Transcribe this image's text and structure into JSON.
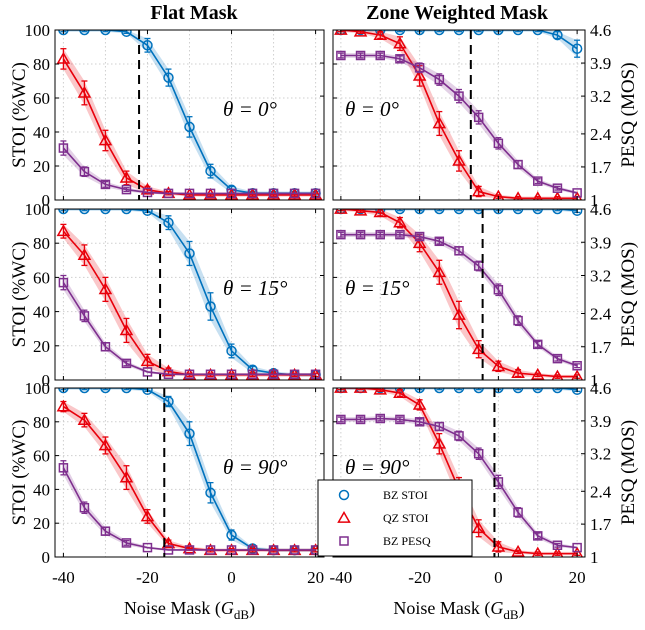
{
  "colors": {
    "stoi_bz": "#0072BD",
    "stoi_qz": "#E8000B",
    "pesq_bz": "#7E2F8E"
  },
  "titles": {
    "left": "Flat Mask",
    "right": "Zone Weighted Mask"
  },
  "axes": {
    "left_ylabel": "STOI (%WC)",
    "right_ylabel": "PESQ (MOS)",
    "xlabel_prefix": "Noise Mask (",
    "xlabel_var": "G",
    "xlabel_sub": "dB",
    "xlabel_suffix": ")",
    "x_ticks": [
      "-40",
      "-20",
      "0",
      "20"
    ],
    "x_tick_values": [
      -40,
      -20,
      0,
      20
    ],
    "left_ticks": [
      "0",
      "20",
      "40",
      "60",
      "80",
      "100"
    ],
    "left_tick_values": [
      0,
      20,
      40,
      60,
      80,
      100
    ],
    "right_ticks": [
      "1",
      "1.7",
      "2.4",
      "3.2",
      "3.9",
      "4.6"
    ],
    "right_tick_values": [
      1,
      1.7,
      2.4,
      3.2,
      3.9,
      4.6
    ]
  },
  "legend": [
    {
      "label": "BZ STOI",
      "marker": "circle-icon",
      "color": "#0072BD"
    },
    {
      "label": "QZ STOI",
      "marker": "triangle-icon",
      "color": "#E8000B"
    },
    {
      "label": "BZ PESQ",
      "marker": "square-icon",
      "color": "#7E2F8E"
    }
  ],
  "chart_data": {
    "type": "line",
    "x": [
      -40,
      -35,
      -30,
      -25,
      -20,
      -15,
      -10,
      -5,
      0,
      5,
      10,
      15,
      20
    ],
    "xlim": [
      -42,
      22
    ],
    "ylim_stoi": [
      0,
      100
    ],
    "ylim_pesq": [
      1,
      4.6
    ],
    "grid": true,
    "legend_position": "bottom-right of the lower-left panel",
    "panels": [
      {
        "row": 0,
        "col": 0,
        "angle_label": "θ = 0°",
        "threshold_x": -22,
        "series": [
          {
            "name": "BZ STOI",
            "values": [
              100,
              100,
              100,
              99,
              91,
              72,
              43,
              17,
              6,
              4,
              4,
              4,
              4
            ],
            "err": [
              1,
              1,
              1,
              1,
              4,
              5,
              6,
              4,
              2,
              1,
              1,
              1,
              1
            ]
          },
          {
            "name": "QZ STOI",
            "values": [
              83,
              63,
              35,
              13,
              6,
              4,
              3,
              3,
              3,
              3,
              3,
              3,
              3
            ],
            "err": [
              6,
              7,
              6,
              4,
              2,
              1,
              1,
              1,
              1,
              1,
              1,
              1,
              1
            ]
          },
          {
            "name": "BZ PESQ",
            "values": [
              2.1,
              1.6,
              1.33,
              1.22,
              1.16,
              1.14,
              1.14,
              1.14,
              1.14,
              1.14,
              1.14,
              1.14,
              1.14
            ],
            "err": [
              0.15,
              0.1,
              0.06,
              0.04,
              0.03,
              0.02,
              0.02,
              0.02,
              0.02,
              0.02,
              0.02,
              0.02,
              0.02
            ]
          }
        ]
      },
      {
        "row": 0,
        "col": 1,
        "angle_label": "θ = 0°",
        "threshold_x": -7,
        "series": [
          {
            "name": "BZ STOI",
            "values": [
              100,
              100,
              100,
              100,
              100,
              100,
              100,
              100,
              100,
              100,
              100,
              97,
              89
            ],
            "err": [
              1,
              1,
              1,
              1,
              1,
              1,
              1,
              1,
              1,
              1,
              1,
              2,
              5
            ]
          },
          {
            "name": "QZ STOI",
            "values": [
              100,
              99,
              97,
              92,
              73,
              45,
              23,
              5,
              2,
              1,
              1,
              1,
              1
            ],
            "err": [
              1,
              1,
              2,
              4,
              6,
              7,
              6,
              3,
              1,
              1,
              1,
              1,
              1
            ]
          },
          {
            "name": "BZ PESQ",
            "values": [
              4.06,
              4.06,
              4.06,
              3.99,
              3.8,
              3.55,
              3.2,
              2.75,
              2.2,
              1.75,
              1.4,
              1.25,
              1.15
            ],
            "err": [
              0.05,
              0.05,
              0.05,
              0.06,
              0.1,
              0.12,
              0.14,
              0.14,
              0.12,
              0.08,
              0.05,
              0.04,
              0.03
            ]
          }
        ]
      },
      {
        "row": 1,
        "col": 0,
        "angle_label": "θ = 15°",
        "threshold_x": -17,
        "series": [
          {
            "name": "BZ STOI",
            "values": [
              100,
              100,
              100,
              100,
              99,
              92,
              74,
              43,
              17,
              6,
              4,
              3,
              3
            ],
            "err": [
              1,
              1,
              1,
              1,
              1,
              4,
              7,
              8,
              4,
              2,
              1,
              1,
              1
            ]
          },
          {
            "name": "QZ STOI",
            "values": [
              87,
              73,
              53,
              29,
              11,
              5,
              3,
              3,
              3,
              3,
              3,
              3,
              3
            ],
            "err": [
              4,
              6,
              7,
              7,
              4,
              2,
              1,
              1,
              1,
              1,
              1,
              1,
              1
            ]
          },
          {
            "name": "BZ PESQ",
            "values": [
              3.05,
              2.35,
              1.7,
              1.35,
              1.17,
              1.12,
              1.12,
              1.12,
              1.12,
              1.12,
              1.12,
              1.12,
              1.12
            ],
            "err": [
              0.15,
              0.12,
              0.08,
              0.05,
              0.03,
              0.02,
              0.02,
              0.02,
              0.02,
              0.02,
              0.02,
              0.02,
              0.02
            ]
          }
        ]
      },
      {
        "row": 1,
        "col": 1,
        "angle_label": "θ = 15°",
        "threshold_x": -4,
        "series": [
          {
            "name": "BZ STOI",
            "values": [
              100,
              100,
              100,
              100,
              100,
              100,
              100,
              100,
              100,
              100,
              100,
              100,
              99
            ],
            "err": [
              1,
              1,
              1,
              1,
              1,
              1,
              1,
              1,
              1,
              1,
              1,
              1,
              1
            ]
          },
          {
            "name": "QZ STOI",
            "values": [
              100,
              99,
              98,
              92,
              80,
              63,
              38,
              18,
              8,
              4,
              3,
              2,
              2
            ],
            "err": [
              1,
              1,
              2,
              3,
              5,
              7,
              8,
              5,
              3,
              2,
              1,
              1,
              1
            ]
          },
          {
            "name": "BZ PESQ",
            "values": [
              4.06,
              4.06,
              4.06,
              4.06,
              4.02,
              3.92,
              3.72,
              3.4,
              2.9,
              2.25,
              1.75,
              1.45,
              1.3
            ],
            "err": [
              0.05,
              0.05,
              0.05,
              0.05,
              0.05,
              0.06,
              0.08,
              0.1,
              0.12,
              0.1,
              0.06,
              0.05,
              0.04
            ]
          }
        ]
      },
      {
        "row": 2,
        "col": 0,
        "angle_label": "θ = 90°",
        "threshold_x": -16,
        "series": [
          {
            "name": "BZ STOI",
            "values": [
              100,
              100,
              100,
              100,
              99,
              92,
              73,
              38,
              13,
              5,
              4,
              4,
              4
            ],
            "err": [
              1,
              1,
              1,
              1,
              1,
              3,
              7,
              6,
              3,
              1,
              1,
              1,
              1
            ]
          },
          {
            "name": "QZ STOI",
            "values": [
              89,
              81,
              66,
              47,
              24,
              8,
              5,
              4,
              4,
              4,
              4,
              4,
              4
            ],
            "err": [
              3,
              4,
              5,
              7,
              4,
              2,
              1,
              1,
              1,
              1,
              1,
              1,
              1
            ]
          },
          {
            "name": "BZ PESQ",
            "values": [
              2.9,
              2.05,
              1.55,
              1.3,
              1.2,
              1.15,
              1.15,
              1.15,
              1.15,
              1.15,
              1.15,
              1.15,
              1.15
            ],
            "err": [
              0.15,
              0.12,
              0.08,
              0.05,
              0.03,
              0.02,
              0.02,
              0.02,
              0.02,
              0.02,
              0.02,
              0.02,
              0.02
            ]
          }
        ]
      },
      {
        "row": 2,
        "col": 1,
        "angle_label": "θ = 90°",
        "threshold_x": -1,
        "series": [
          {
            "name": "BZ STOI",
            "values": [
              100,
              100,
              100,
              100,
              100,
              100,
              100,
              100,
              100,
              100,
              100,
              100,
              99
            ],
            "err": [
              1,
              1,
              1,
              1,
              1,
              1,
              1,
              1,
              1,
              1,
              1,
              1,
              1
            ]
          },
          {
            "name": "QZ STOI",
            "values": [
              100,
              100,
              99,
              97,
              90,
              67,
              40,
              17,
              6,
              3,
              2,
              2,
              2
            ],
            "err": [
              1,
              1,
              1,
              2,
              3,
              6,
              7,
              5,
              3,
              1,
              1,
              1,
              1
            ]
          },
          {
            "name": "BZ PESQ",
            "values": [
              3.93,
              3.93,
              3.95,
              3.93,
              3.88,
              3.78,
              3.58,
              3.2,
              2.6,
              1.95,
              1.45,
              1.25,
              1.2
            ],
            "err": [
              0.05,
              0.05,
              0.05,
              0.05,
              0.06,
              0.08,
              0.1,
              0.12,
              0.14,
              0.1,
              0.06,
              0.04,
              0.03
            ]
          }
        ]
      }
    ]
  }
}
